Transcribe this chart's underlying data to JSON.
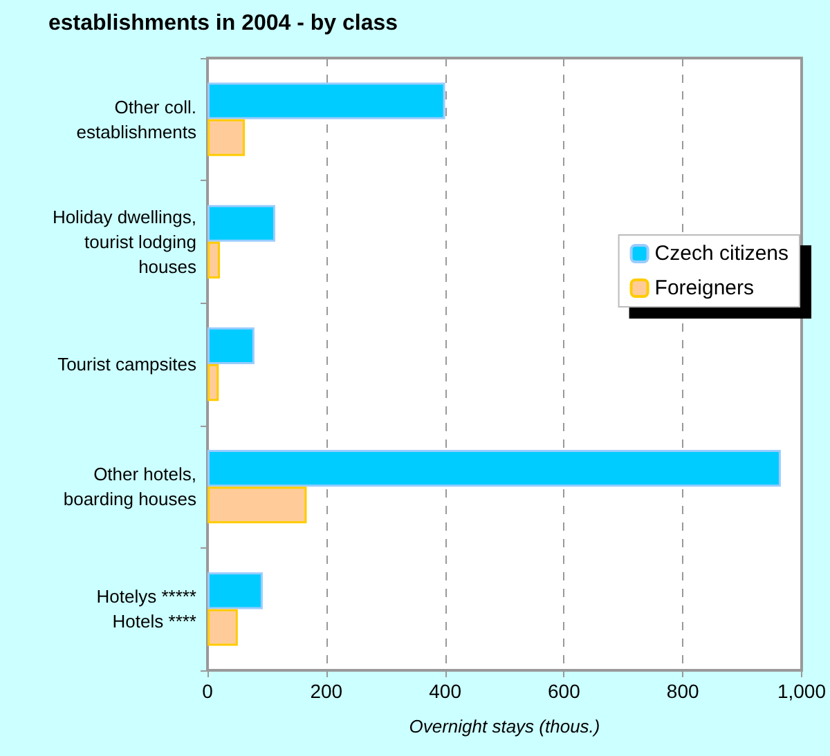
{
  "chart_data": {
    "type": "bar",
    "orientation": "horizontal",
    "title": "establishments in 2004 - by class",
    "xlabel": "Overnight stays (thous.)",
    "categories": [
      "Other coll.\nestablishments",
      "Holiday dwellings,\ntourist lodging\nhouses",
      "Tourist campsites",
      "Other hotels,\nboarding houses",
      "Hotelys *****\nHotels ****"
    ],
    "series": [
      {
        "name": "Czech citizens",
        "color": "#00ccff",
        "values": [
          400,
          114,
          79,
          965,
          93
        ]
      },
      {
        "name": "Foreigners",
        "color": "#ffcc99",
        "values": [
          63,
          21,
          19,
          167,
          51
        ]
      }
    ],
    "xlim": [
      0,
      1000
    ],
    "xticks": [
      0,
      200,
      400,
      600,
      800,
      {
        "value": 1000,
        "label": "1,000"
      }
    ],
    "grid": "x",
    "legend": "right"
  }
}
